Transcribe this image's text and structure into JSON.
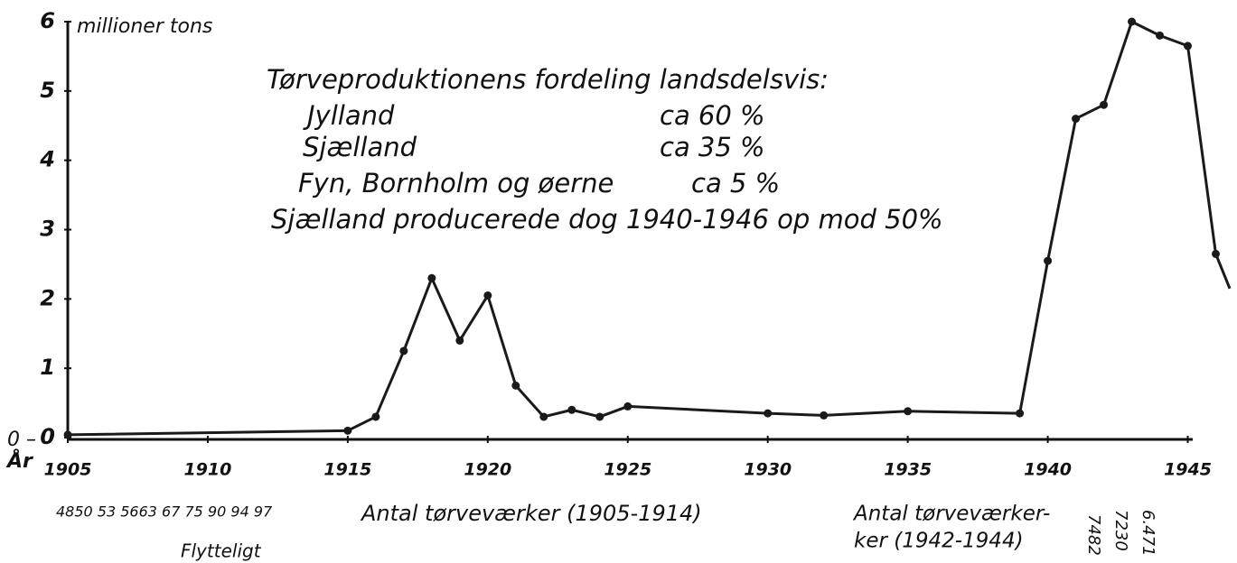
{
  "chart_data": {
    "type": "line",
    "y_label": "millioner tons",
    "x_label": "År",
    "x": [
      1905,
      1915,
      1916,
      1917,
      1918,
      1919,
      1920,
      1921,
      1922,
      1923,
      1924,
      1925,
      1930,
      1932,
      1935,
      1939,
      1940,
      1941,
      1942,
      1943,
      1944,
      1945,
      1946,
      1946.5
    ],
    "series": [
      {
        "color": "#1a1a1a",
        "values": [
          0.04,
          0.1,
          0.3,
          1.25,
          2.3,
          1.4,
          2.05,
          0.75,
          0.3,
          0.4,
          0.3,
          0.45,
          0.35,
          0.32,
          0.38,
          0.35,
          2.55,
          4.6,
          4.8,
          6.0,
          5.8,
          5.65,
          2.65,
          2.15
        ]
      }
    ],
    "xlim": [
      1905,
      1946.5
    ],
    "ylim": [
      0,
      6
    ],
    "xticks": [
      1905,
      1910,
      1915,
      1920,
      1925,
      1930,
      1935,
      1940,
      1945
    ],
    "yticks": [
      0,
      1,
      2,
      3,
      4,
      5,
      6
    ],
    "grid": false,
    "annotations": [
      "Tørveproduktionens fordeling landsdelsvis:",
      "Jylland",
      "ca 60 %",
      "Sjælland",
      "ca 35 %",
      "Fyn, Bornholm og øerne",
      "ca 5 %",
      "Sjælland producerede dog 1940-1946 op mod 50%",
      "0 –",
      "4850 53 5663 67 75 90 94 97",
      "Antal tørveværker (1905-1914)",
      "Antal tørveværker-",
      "ker (1942-1944)",
      "7482",
      "7230",
      "6.471",
      "Flytteligt"
    ]
  }
}
